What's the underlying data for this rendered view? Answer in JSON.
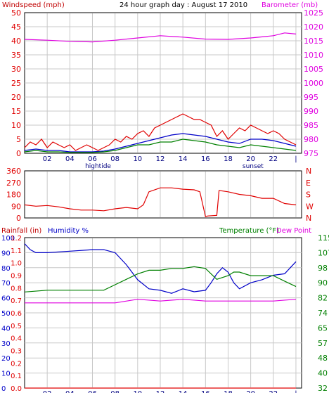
{
  "header": {
    "title": "24 hour graph day : August 17 2010",
    "left_label": "Windspeed (mph)",
    "right_label": "Barometer (mb)"
  },
  "colors": {
    "red": "#e00000",
    "blue": "#0000c8",
    "green": "#008000",
    "magenta": "#e000e0",
    "grid": "#c8c8c8",
    "frame": "#000000",
    "left_text": "#c00000",
    "bottom_text": "#000080"
  },
  "x_axis": {
    "tick_labels": [
      "02",
      "04",
      "06",
      "08",
      "10",
      "12",
      "14",
      "16",
      "18",
      "20",
      "22",
      "|"
    ],
    "tick_hours": [
      2,
      4,
      6,
      8,
      10,
      12,
      14,
      16,
      18,
      20,
      22,
      24
    ],
    "event_labels": [
      {
        "text": "hightide",
        "hour": 6.5
      },
      {
        "text": "sunset",
        "hour": 20.2
      }
    ]
  },
  "chart_data": [
    {
      "type": "line",
      "title": "24 hour graph day : August 17 2010",
      "x_unit": "hour",
      "xlim": [
        0,
        24.5
      ],
      "left_axis": {
        "label": "Windspeed (mph)",
        "ticks": [
          0,
          5,
          10,
          15,
          20,
          25,
          30,
          35,
          40,
          45,
          50
        ],
        "ylim": [
          0,
          50
        ]
      },
      "right_axis": {
        "label": "Barometer (mb)",
        "ticks": [
          975,
          980,
          985,
          990,
          995,
          1000,
          1005,
          1010,
          1015,
          1020,
          1025
        ],
        "ylim": [
          975,
          1025
        ]
      },
      "series": [
        {
          "name": "Windspeed (mph)",
          "axis": "left",
          "color": "#e00000",
          "x": [
            0,
            0.5,
            1,
            1.5,
            2,
            2.5,
            3,
            3.5,
            4,
            4.5,
            5,
            5.5,
            6,
            6.5,
            7,
            7.5,
            8,
            8.5,
            9,
            9.5,
            10,
            10.5,
            11,
            11.5,
            12,
            12.5,
            13,
            13.5,
            14,
            14.5,
            15,
            15.5,
            16,
            16.5,
            17,
            17.5,
            18,
            18.5,
            19,
            19.5,
            20,
            20.5,
            21,
            21.5,
            22,
            22.5,
            23,
            23.5,
            24
          ],
          "y": [
            2,
            4,
            3,
            5,
            2,
            4,
            3,
            2,
            3,
            1,
            2,
            3,
            2,
            1,
            2,
            3,
            5,
            4,
            6,
            5,
            7,
            8,
            6,
            9,
            10,
            11,
            12,
            13,
            14,
            13,
            12,
            12,
            11,
            10,
            6,
            8,
            5,
            7,
            9,
            8,
            10,
            9,
            8,
            7,
            8,
            7,
            5,
            4,
            3
          ]
        },
        {
          "name": "Barometer (mb)",
          "axis": "right",
          "color": "#e000e0",
          "x": [
            0,
            2,
            4,
            6,
            8,
            10,
            12,
            14,
            16,
            18,
            20,
            22,
            23,
            24
          ],
          "y": [
            1015.5,
            1015.2,
            1014.8,
            1014.6,
            1015.2,
            1016.0,
            1016.8,
            1016.3,
            1015.6,
            1015.5,
            1016.0,
            1016.8,
            1017.8,
            1017.4
          ]
        },
        {
          "axis": "left",
          "color": "#0000c8",
          "x": [
            0,
            1,
            2,
            3,
            4,
            5,
            6,
            7,
            8,
            9,
            10,
            11,
            12,
            13,
            14,
            15,
            16,
            17,
            18,
            19,
            20,
            21,
            22,
            23,
            24
          ],
          "y": [
            1,
            1.5,
            1,
            1,
            0.5,
            0.5,
            0.5,
            0.8,
            1.5,
            2.5,
            3.5,
            4.5,
            5.5,
            6.5,
            7,
            6.5,
            6,
            5,
            4,
            3.5,
            5,
            5,
            4.5,
            3.5,
            2.5
          ]
        },
        {
          "axis": "left",
          "color": "#008000",
          "x": [
            0,
            1,
            2,
            3,
            4,
            5,
            6,
            7,
            8,
            9,
            10,
            11,
            12,
            13,
            14,
            15,
            16,
            17,
            18,
            19,
            20,
            21,
            22,
            23,
            24
          ],
          "y": [
            0.5,
            1,
            0.5,
            0.5,
            0.3,
            0.3,
            0.3,
            0.5,
            1,
            2,
            3,
            3,
            4,
            4,
            5,
            4.5,
            4,
            3,
            2.5,
            2,
            3,
            2.5,
            2,
            1.5,
            1
          ]
        }
      ]
    },
    {
      "type": "line",
      "x_unit": "hour",
      "xlim": [
        0,
        24.5
      ],
      "left_axis": {
        "ticks": [
          0,
          90,
          180,
          270,
          360
        ],
        "ylim": [
          0,
          360
        ]
      },
      "right_axis": {
        "ticks": [
          "N",
          "W",
          "S",
          "E",
          "N"
        ]
      },
      "series": [
        {
          "axis": "left",
          "color": "#e00000",
          "x": [
            0,
            1,
            2,
            3,
            4,
            5,
            6,
            7,
            8,
            9,
            10,
            10.5,
            11,
            12,
            13,
            14,
            15,
            15.5,
            16,
            16.2,
            17,
            17.2,
            18,
            19,
            20,
            21,
            22,
            23,
            24
          ],
          "y": [
            100,
            90,
            95,
            85,
            70,
            60,
            60,
            55,
            70,
            80,
            70,
            100,
            200,
            230,
            230,
            220,
            215,
            200,
            10,
            15,
            20,
            210,
            200,
            180,
            170,
            150,
            150,
            110,
            100
          ]
        }
      ]
    },
    {
      "type": "line",
      "x_unit": "hour",
      "xlim": [
        0,
        24.5
      ],
      "labels": {
        "rainfall": "Rainfall (in)",
        "humidity": "Humidity %",
        "temperature": "Temperature (°F)",
        "dewpoint": "Dew Point"
      },
      "axes": {
        "humidity_ticks": [
          0,
          10,
          20,
          30,
          40,
          50,
          60,
          70,
          80,
          90,
          100
        ],
        "rainfall_ticks": [
          0.0,
          0.1,
          0.2,
          0.3,
          0.4,
          0.5,
          0.6,
          0.7,
          0.8,
          0.9,
          1.0,
          1.1,
          1.2
        ],
        "temperature_ticks": [
          32,
          40,
          48,
          57,
          65,
          74,
          82,
          90,
          98,
          107,
          115
        ],
        "humidity_lim": [
          0,
          100
        ],
        "temperature_lim": [
          32,
          115
        ]
      },
      "series": [
        {
          "name": "Humidity %",
          "axis": "humidity",
          "color": "#0000c8",
          "x": [
            0,
            0.5,
            1,
            2,
            4,
            6,
            7,
            8,
            9,
            10,
            11,
            12,
            13,
            14,
            15,
            16,
            16.5,
            17,
            17.5,
            18,
            18.5,
            19,
            20,
            21,
            22,
            23,
            23.5,
            24
          ],
          "y": [
            96,
            92,
            90,
            90,
            91,
            92,
            92,
            90,
            82,
            72,
            66,
            65,
            63,
            66,
            64,
            65,
            70,
            76,
            80,
            77,
            70,
            66,
            70,
            72,
            75,
            76,
            80,
            84
          ]
        },
        {
          "name": "Temperature (°F)",
          "axis": "temperature",
          "color": "#008000",
          "x": [
            0,
            2,
            4,
            6,
            7,
            8,
            9,
            10,
            11,
            12,
            13,
            14,
            15,
            16,
            16.5,
            17,
            18,
            18.5,
            19,
            20,
            21,
            22,
            23,
            24
          ],
          "y": [
            85,
            86,
            86,
            86,
            86,
            89,
            92,
            95,
            97,
            97,
            98,
            98,
            99,
            98,
            95,
            92,
            94,
            96,
            96,
            94,
            94,
            94,
            91,
            88
          ]
        },
        {
          "name": "Dew Point",
          "axis": "temperature",
          "color": "#e000e0",
          "x": [
            0,
            2,
            4,
            6,
            8,
            10,
            12,
            14,
            16,
            18,
            20,
            22,
            24
          ],
          "y": [
            79,
            79,
            79,
            79,
            79,
            81,
            80,
            81,
            80,
            80,
            80,
            80,
            81
          ]
        },
        {
          "name": "Rainfall (in)",
          "axis": "rainfall",
          "color": "#e00000",
          "x": [
            0,
            24
          ],
          "y": [
            0,
            0
          ]
        }
      ]
    }
  ]
}
